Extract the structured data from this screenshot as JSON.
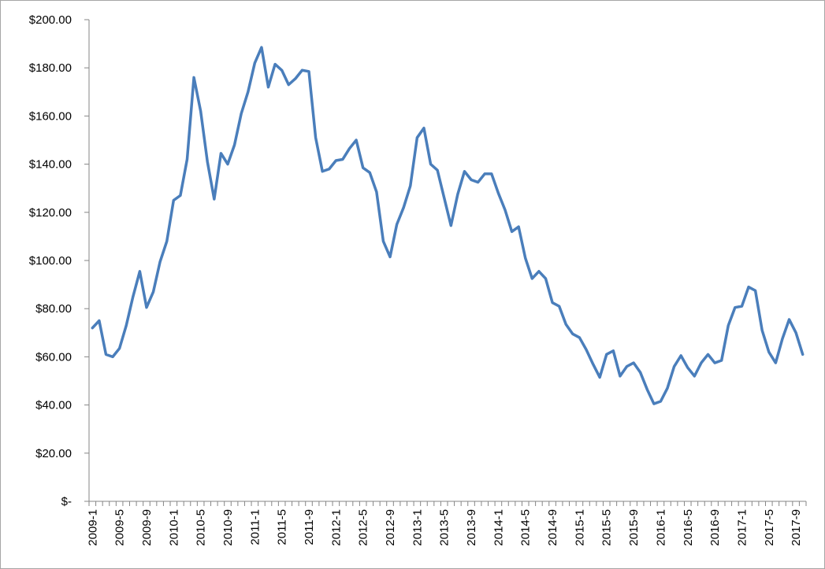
{
  "chart_data": {
    "type": "line",
    "title": "",
    "xlabel": "",
    "ylabel": "",
    "ylim": [
      0,
      200
    ],
    "y_ticks": [
      {
        "value": 0,
        "label": "$-"
      },
      {
        "value": 20,
        "label": "$20.00"
      },
      {
        "value": 40,
        "label": "$40.00"
      },
      {
        "value": 60,
        "label": "$60.00"
      },
      {
        "value": 80,
        "label": "$80.00"
      },
      {
        "value": 100,
        "label": "$100.00"
      },
      {
        "value": 120,
        "label": "$120.00"
      },
      {
        "value": 140,
        "label": "$140.00"
      },
      {
        "value": 160,
        "label": "$160.00"
      },
      {
        "value": 180,
        "label": "$180.00"
      },
      {
        "value": 200,
        "label": "$200.00"
      }
    ],
    "x_tick_labels": [
      "2009-1",
      "2009-5",
      "2009-9",
      "2010-1",
      "2010-5",
      "2010-9",
      "2011-1",
      "2011-5",
      "2011-9",
      "2012-1",
      "2012-5",
      "2012-9",
      "2013-1",
      "2013-5",
      "2013-9",
      "2014-1",
      "2014-5",
      "2014-9",
      "2015-1",
      "2015-5",
      "2015-9",
      "2016-1",
      "2016-5",
      "2016-9",
      "2017-1",
      "2017-5",
      "2017-9"
    ],
    "grid": false,
    "legend": "none",
    "line_color": "#4a7ebb",
    "categories": [
      "2009-1",
      "2009-2",
      "2009-3",
      "2009-4",
      "2009-5",
      "2009-6",
      "2009-7",
      "2009-8",
      "2009-9",
      "2009-10",
      "2009-11",
      "2009-12",
      "2010-1",
      "2010-2",
      "2010-3",
      "2010-4",
      "2010-5",
      "2010-6",
      "2010-7",
      "2010-8",
      "2010-9",
      "2010-10",
      "2010-11",
      "2010-12",
      "2011-1",
      "2011-2",
      "2011-3",
      "2011-4",
      "2011-5",
      "2011-6",
      "2011-7",
      "2011-8",
      "2011-9",
      "2011-10",
      "2011-11",
      "2011-12",
      "2012-1",
      "2012-2",
      "2012-3",
      "2012-4",
      "2012-5",
      "2012-6",
      "2012-7",
      "2012-8",
      "2012-9",
      "2012-10",
      "2012-11",
      "2012-12",
      "2013-1",
      "2013-2",
      "2013-3",
      "2013-4",
      "2013-5",
      "2013-6",
      "2013-7",
      "2013-8",
      "2013-9",
      "2013-10",
      "2013-11",
      "2013-12",
      "2014-1",
      "2014-2",
      "2014-3",
      "2014-4",
      "2014-5",
      "2014-6",
      "2014-7",
      "2014-8",
      "2014-9",
      "2014-10",
      "2014-11",
      "2014-12",
      "2015-1",
      "2015-2",
      "2015-3",
      "2015-4",
      "2015-5",
      "2015-6",
      "2015-7",
      "2015-8",
      "2015-9",
      "2015-10",
      "2015-11",
      "2015-12",
      "2016-1",
      "2016-2",
      "2016-3",
      "2016-4",
      "2016-5",
      "2016-6",
      "2016-7",
      "2016-8",
      "2016-9",
      "2016-10",
      "2016-11",
      "2016-12",
      "2017-1",
      "2017-2",
      "2017-3",
      "2017-4",
      "2017-5",
      "2017-6",
      "2017-7",
      "2017-8",
      "2017-9",
      "2017-10"
    ],
    "values": [
      72,
      75,
      61,
      60,
      63.5,
      73,
      85,
      95.5,
      80.5,
      87,
      99.5,
      108,
      125,
      127,
      142,
      176,
      162,
      141,
      125.5,
      144.5,
      140,
      148,
      161,
      170,
      182,
      188.5,
      172,
      181.5,
      179,
      173,
      175.5,
      179,
      178.5,
      151,
      137,
      138,
      141.5,
      142,
      146.5,
      150,
      138.5,
      136.5,
      128.5,
      108,
      101.5,
      115,
      122,
      131,
      151,
      155,
      140,
      137.5,
      126,
      114.5,
      127.5,
      137,
      133.5,
      132.5,
      136,
      136,
      128,
      121,
      112,
      114,
      101,
      92.5,
      95.5,
      92.5,
      82.5,
      81,
      73.5,
      69.5,
      68,
      63,
      57,
      51.5,
      61,
      62.5,
      52,
      56,
      57.5,
      53.5,
      46.5,
      40.5,
      41.5,
      47,
      56,
      60.5,
      55.5,
      52,
      57.5,
      61,
      57.5,
      58.5,
      73,
      80.5,
      81,
      89,
      87.5,
      71,
      62,
      57.5,
      67.5,
      75.5,
      70,
      61
    ]
  }
}
